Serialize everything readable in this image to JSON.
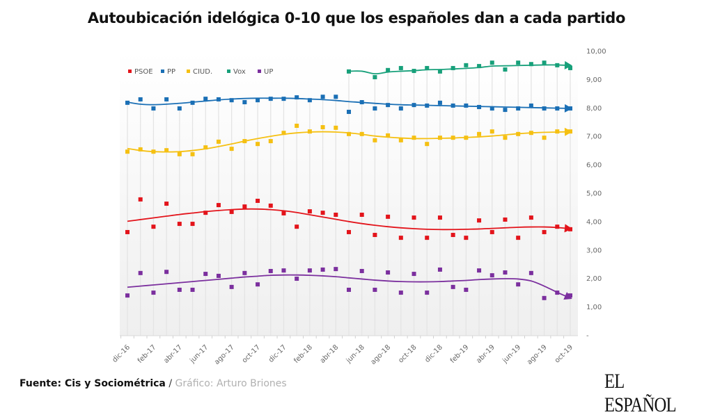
{
  "title": "Autoubicación idelógica 0-10 que los españoles dan a cada partido",
  "footer": {
    "source": "Fuente: Cis y Sociométrica",
    "separator": " / ",
    "credit": "Gráfico: Arturo Briones"
  },
  "logo": "EL ESPAÑOL",
  "chart_data": {
    "type": "scatter",
    "title": "Autoubicación idelógica 0-10 que los españoles dan a cada partido",
    "xlabel": "",
    "ylabel": "",
    "ylim": [
      0,
      10
    ],
    "yticks": [
      "-",
      "1,00",
      "2,00",
      "3,00",
      "4,00",
      "5,00",
      "6,00",
      "7,00",
      "8,00",
      "9,00",
      "10,00"
    ],
    "y_axis_position": "right",
    "grid": "vertical",
    "legend_position": "top-left",
    "x": [
      "dic-16",
      "ene-17",
      "feb-17",
      "mar-17",
      "abr-17",
      "may-17",
      "jun-17",
      "jul-17",
      "ago-17",
      "sep-17",
      "oct-17",
      "nov-17",
      "dic-17",
      "ene-18",
      "feb-18",
      "mar-18",
      "abr-18",
      "may-18",
      "jun-18",
      "jul-18",
      "ago-18",
      "sep-18",
      "oct-18",
      "nov-18",
      "dic-18",
      "ene-19",
      "feb-19",
      "mar-19",
      "abr-19",
      "may-19",
      "jun-19",
      "jul-19",
      "ago-19",
      "sep-19",
      "oct-19"
    ],
    "xtick_labels": [
      "dic-16",
      "feb-17",
      "abr-17",
      "jun-17",
      "ago-17",
      "oct-17",
      "dic-17",
      "feb-18",
      "abr-18",
      "jun-18",
      "ago-18",
      "oct-18",
      "dic-18",
      "feb-19",
      "abr-19",
      "jun-19",
      "ago-19",
      "oct-19"
    ],
    "series": [
      {
        "name": "PSOE",
        "color": "#e3141b",
        "trend": "smooth",
        "values": [
          3.62,
          4.77,
          3.81,
          4.62,
          3.91,
          3.91,
          4.3,
          4.57,
          4.33,
          4.52,
          4.72,
          4.55,
          4.28,
          3.81,
          4.35,
          4.3,
          4.23,
          3.62,
          4.23,
          3.52,
          4.16,
          3.42,
          4.13,
          3.42,
          4.13,
          3.52,
          3.42,
          4.03,
          3.62,
          4.06,
          3.42,
          4.13,
          3.62,
          3.81,
          3.72
        ]
      },
      {
        "name": "PP",
        "color": "#1a6fb5",
        "trend": "smooth",
        "values": [
          8.17,
          8.29,
          7.97,
          8.29,
          7.97,
          8.17,
          8.31,
          8.29,
          8.26,
          8.19,
          8.26,
          8.31,
          8.31,
          8.36,
          8.26,
          8.38,
          8.38,
          7.85,
          8.19,
          7.97,
          8.09,
          7.97,
          8.09,
          8.07,
          8.17,
          8.07,
          8.07,
          8.02,
          7.97,
          7.92,
          7.97,
          8.07,
          7.97,
          7.97,
          7.97
        ]
      },
      {
        "name": "CIUD.",
        "color": "#f5c012",
        "trend": "smooth",
        "values": [
          6.45,
          6.53,
          6.45,
          6.5,
          6.36,
          6.36,
          6.6,
          6.8,
          6.55,
          6.82,
          6.72,
          6.82,
          7.11,
          7.36,
          7.16,
          7.31,
          7.29,
          7.07,
          7.07,
          6.85,
          7.02,
          6.85,
          6.94,
          6.72,
          6.94,
          6.94,
          6.94,
          7.07,
          7.16,
          6.94,
          7.07,
          7.11,
          6.94,
          7.16,
          7.16
        ]
      },
      {
        "name": "Vox",
        "color": "#17a07a",
        "trend": "line",
        "values": [
          null,
          null,
          null,
          null,
          null,
          null,
          null,
          null,
          null,
          null,
          null,
          null,
          null,
          null,
          null,
          null,
          null,
          9.27,
          null,
          9.07,
          9.32,
          9.39,
          9.29,
          9.39,
          9.27,
          9.39,
          9.49,
          9.46,
          9.58,
          9.34,
          9.58,
          9.53,
          9.58,
          9.49,
          9.39
        ]
      },
      {
        "name": "UP",
        "color": "#7b2f9e",
        "trend": "smooth",
        "values": [
          1.39,
          2.18,
          1.49,
          2.22,
          1.59,
          1.59,
          2.15,
          2.08,
          1.69,
          2.18,
          1.78,
          2.25,
          2.27,
          1.98,
          2.27,
          2.3,
          2.32,
          1.59,
          2.25,
          1.59,
          2.2,
          1.49,
          2.15,
          1.49,
          2.3,
          1.69,
          1.59,
          2.27,
          2.1,
          2.2,
          1.78,
          2.18,
          1.3,
          1.49,
          1.39
        ]
      }
    ],
    "trend_lines": {
      "PSOE": [
        4.0,
        4.06,
        4.12,
        4.18,
        4.24,
        4.29,
        4.34,
        4.38,
        4.41,
        4.43,
        4.43,
        4.41,
        4.37,
        4.31,
        4.23,
        4.15,
        4.07,
        3.99,
        3.92,
        3.86,
        3.81,
        3.77,
        3.74,
        3.72,
        3.71,
        3.71,
        3.72,
        3.73,
        3.75,
        3.77,
        3.79,
        3.8,
        3.8,
        3.78,
        3.74
      ],
      "PP": [
        8.19,
        8.12,
        8.1,
        8.12,
        8.15,
        8.19,
        8.23,
        8.27,
        8.3,
        8.32,
        8.33,
        8.33,
        8.33,
        8.32,
        8.3,
        8.28,
        8.25,
        8.21,
        8.18,
        8.15,
        8.12,
        8.1,
        8.09,
        8.08,
        8.07,
        8.06,
        8.05,
        8.04,
        8.03,
        8.02,
        8.01,
        8.0,
        7.99,
        7.98,
        7.97
      ],
      "CIUD.": [
        6.56,
        6.49,
        6.45,
        6.44,
        6.45,
        6.49,
        6.55,
        6.63,
        6.72,
        6.82,
        6.91,
        6.99,
        7.06,
        7.11,
        7.14,
        7.15,
        7.14,
        7.11,
        7.06,
        7.0,
        6.96,
        6.93,
        6.91,
        6.91,
        6.92,
        6.93,
        6.95,
        6.97,
        7.0,
        7.04,
        7.08,
        7.11,
        7.13,
        7.14,
        7.15
      ],
      "Vox": [
        null,
        null,
        null,
        null,
        null,
        null,
        null,
        null,
        null,
        null,
        null,
        null,
        null,
        null,
        null,
        null,
        null,
        9.28,
        9.28,
        9.19,
        9.25,
        9.28,
        9.3,
        9.33,
        9.34,
        9.36,
        9.38,
        9.41,
        9.46,
        9.47,
        9.48,
        9.49,
        9.5,
        9.5,
        9.48
      ],
      "UP": [
        1.68,
        1.72,
        1.76,
        1.8,
        1.84,
        1.88,
        1.92,
        1.96,
        2.0,
        2.04,
        2.07,
        2.1,
        2.11,
        2.11,
        2.1,
        2.08,
        2.05,
        2.01,
        1.97,
        1.93,
        1.9,
        1.88,
        1.87,
        1.87,
        1.88,
        1.9,
        1.92,
        1.95,
        1.97,
        1.98,
        1.97,
        1.9,
        1.72,
        1.5,
        1.3
      ]
    }
  }
}
